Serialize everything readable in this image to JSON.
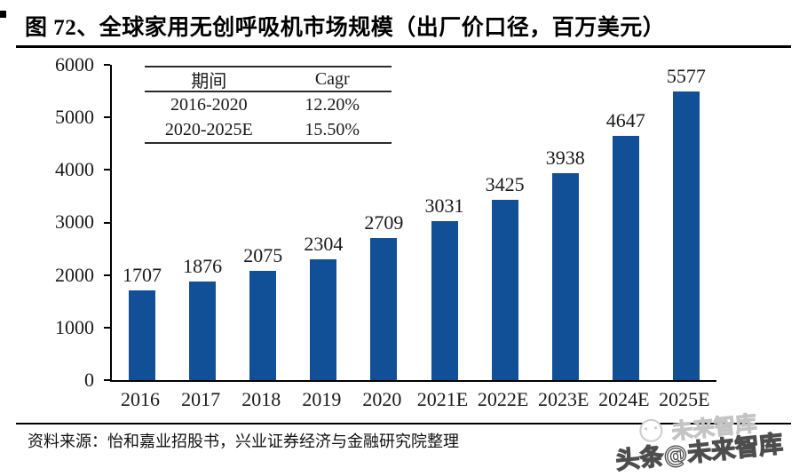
{
  "header": {
    "title": "图 72、全球家用无创呼吸机市场规模（出厂价口径，百万美元）"
  },
  "chart_data": {
    "type": "bar",
    "title": "全球家用无创呼吸机市场规模（出厂价口径，百万美元）",
    "categories": [
      "2016",
      "2017",
      "2018",
      "2019",
      "2020",
      "2021E",
      "2022E",
      "2023E",
      "2024E",
      "2025E"
    ],
    "values": [
      1707,
      1876,
      2075,
      2304,
      2709,
      3031,
      3425,
      3938,
      4647,
      5577
    ],
    "xlabel": "",
    "ylabel": "",
    "ylim": [
      0,
      6000
    ],
    "yticks": [
      0,
      1000,
      2000,
      3000,
      4000,
      5000,
      6000
    ],
    "grid": false,
    "legend": "none",
    "bar_color": "#115096",
    "cagr_table": {
      "headers": {
        "period": "期间",
        "cagr": "Cagr"
      },
      "rows": [
        {
          "period": "2016-2020",
          "cagr": "12.20%"
        },
        {
          "period": "2020-2025E",
          "cagr": "15.50%"
        }
      ]
    }
  },
  "footer": {
    "source": "资料来源：怡和嘉业招股书，兴业证券经济与金融研究院整理",
    "watermark": {
      "main": "头条@未来智库",
      "ghost": "未来智库"
    }
  }
}
